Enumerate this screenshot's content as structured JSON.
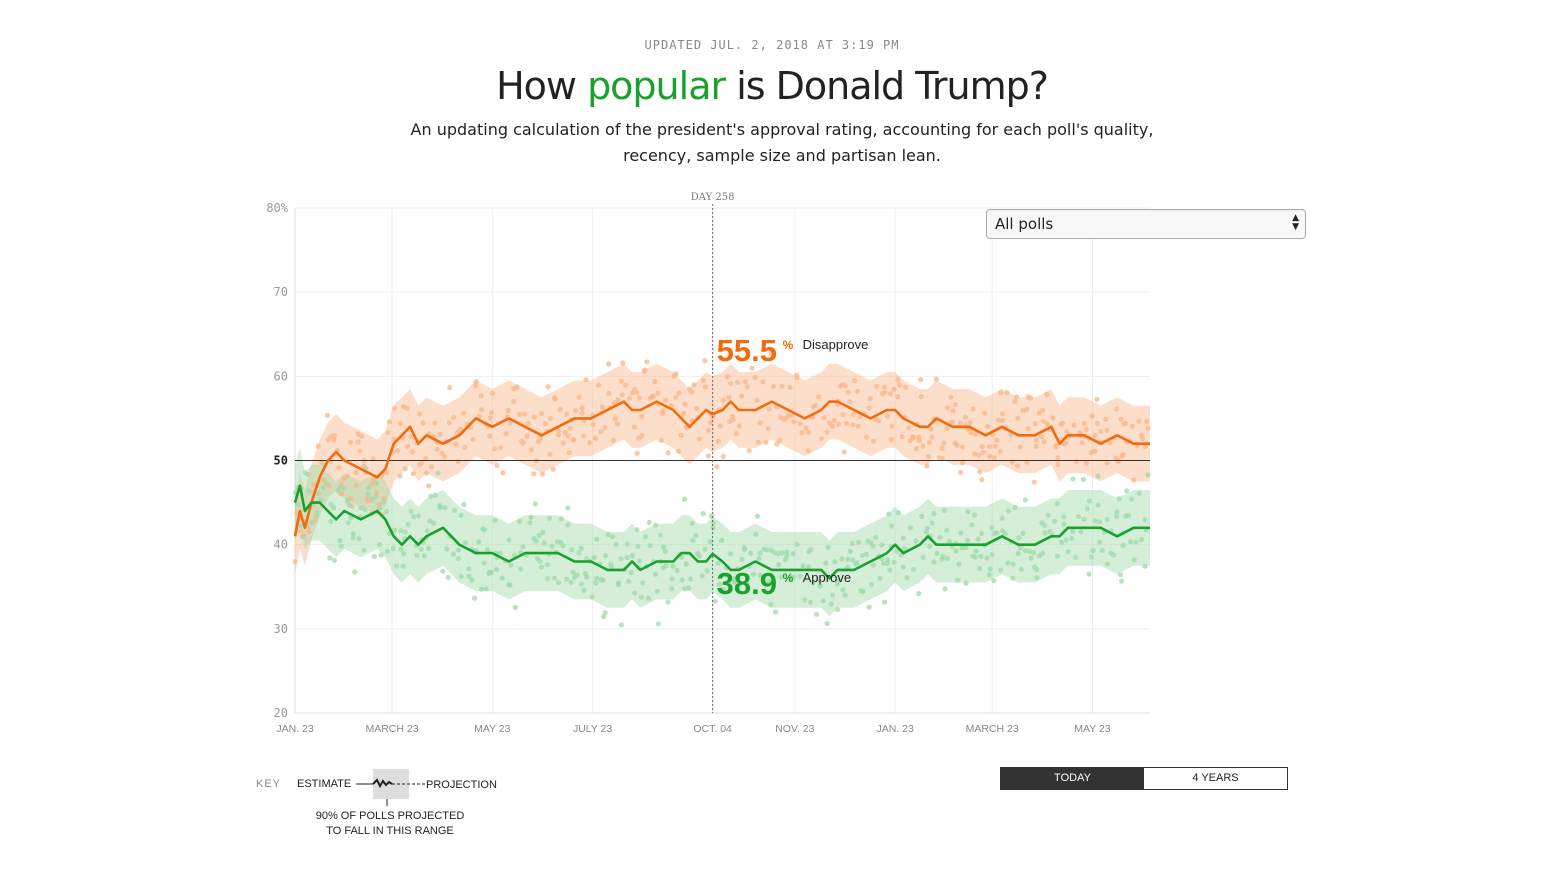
{
  "header": {
    "updated": "UPDATED JUL. 2, 2018 AT 3:19 PM",
    "title_pre": "How ",
    "title_accent": "popular",
    "title_post": " is Donald Trump?",
    "subtitle_line1": "An updating calculation of the president's approval rating, accounting for each poll's quality,",
    "subtitle_line2": "recency, sample size and partisan lean."
  },
  "colors": {
    "approve": "#1aa02d",
    "disapprove": "#f46a0d",
    "approve_light": "#9fd9a8",
    "disapprove_light": "#f9b68a"
  },
  "poll_select": {
    "value": "All polls",
    "arrows": "▲▼"
  },
  "toggle": {
    "today": "TODAY",
    "four_years": "4 YEARS"
  },
  "key": {
    "label": "KEY",
    "estimate": "ESTIMATE",
    "projection": "PROJECTION",
    "range_line1": "90% OF POLLS PROJECTED",
    "range_line2": "TO FALL IN THIS RANGE"
  },
  "chart_data": {
    "type": "line",
    "title": "How popular is Donald Trump?",
    "ylim": [
      20,
      80
    ],
    "xlim_days": [
      0,
      520
    ],
    "ytick_values": [
      80,
      70,
      60,
      50,
      40,
      30,
      20
    ],
    "ytick_labels": [
      "80%",
      "70",
      "60",
      "50",
      "40",
      "30",
      "20"
    ],
    "xticks": [
      {
        "day": 0,
        "label": "JAN. 23"
      },
      {
        "day": 59,
        "label": "MARCH 23"
      },
      {
        "day": 120,
        "label": "MAY 23"
      },
      {
        "day": 181,
        "label": "JULY 23"
      },
      {
        "day": 254,
        "label": "OCT. 04"
      },
      {
        "day": 304,
        "label": "NOV. 23"
      },
      {
        "day": 365,
        "label": "JAN. 23"
      },
      {
        "day": 424,
        "label": "MARCH 23"
      },
      {
        "day": 485,
        "label": "MAY 23"
      }
    ],
    "reference_line": 50,
    "marker": {
      "day": 254,
      "label": "DAY 258"
    },
    "series": [
      {
        "name": "Disapprove",
        "marker_value": "55.5",
        "marker_unit": "%",
        "band_halfwidth": 4.5,
        "x": [
          0,
          3,
          6,
          10,
          15,
          20,
          25,
          30,
          40,
          50,
          55,
          60,
          65,
          70,
          75,
          80,
          90,
          100,
          110,
          120,
          130,
          140,
          150,
          160,
          170,
          180,
          190,
          200,
          205,
          210,
          220,
          230,
          235,
          240,
          245,
          250,
          254,
          260,
          265,
          270,
          280,
          290,
          300,
          310,
          320,
          325,
          330,
          340,
          350,
          360,
          365,
          370,
          380,
          385,
          390,
          400,
          410,
          420,
          430,
          440,
          450,
          460,
          465,
          470,
          480,
          490,
          500,
          510,
          515,
          520
        ],
        "values": [
          41,
          44,
          42,
          45,
          48,
          50,
          51,
          50,
          49,
          48,
          49,
          52,
          53,
          54,
          52,
          53,
          52,
          53,
          55,
          54,
          55,
          54,
          53,
          54,
          55,
          55,
          56,
          57,
          56,
          56,
          57,
          56,
          55,
          54,
          55,
          56,
          55.5,
          56,
          57,
          56,
          56,
          57,
          56,
          55,
          56,
          57,
          57,
          56,
          55,
          56,
          56,
          55,
          54,
          54,
          55,
          54,
          54,
          53,
          54,
          53,
          53,
          54,
          52,
          53,
          53,
          52,
          53,
          52,
          52,
          52
        ]
      },
      {
        "name": "Approve",
        "marker_value": "38.9",
        "marker_unit": "%",
        "band_halfwidth": 4.5,
        "x": [
          0,
          3,
          6,
          10,
          15,
          20,
          25,
          30,
          40,
          50,
          55,
          60,
          65,
          70,
          75,
          80,
          90,
          100,
          110,
          120,
          130,
          140,
          150,
          160,
          170,
          180,
          190,
          200,
          205,
          210,
          220,
          230,
          235,
          240,
          245,
          250,
          254,
          260,
          265,
          270,
          280,
          290,
          300,
          310,
          320,
          325,
          330,
          340,
          350,
          360,
          365,
          370,
          380,
          385,
          390,
          400,
          410,
          420,
          430,
          440,
          450,
          460,
          465,
          470,
          480,
          490,
          500,
          510,
          515,
          520
        ],
        "values": [
          45,
          47,
          44,
          45,
          45,
          44,
          43,
          44,
          43,
          44,
          43,
          41,
          40,
          41,
          40,
          41,
          42,
          40,
          39,
          39,
          38,
          39,
          39,
          39,
          38,
          38,
          37,
          37,
          38,
          37,
          38,
          38,
          39,
          39,
          38,
          38,
          38.9,
          38,
          37,
          37,
          38,
          37,
          37,
          37,
          37,
          36,
          37,
          37,
          38,
          39,
          40,
          39,
          40,
          41,
          40,
          40,
          40,
          40,
          41,
          40,
          40,
          41,
          41,
          42,
          42,
          42,
          41,
          42,
          42,
          42
        ]
      }
    ]
  }
}
